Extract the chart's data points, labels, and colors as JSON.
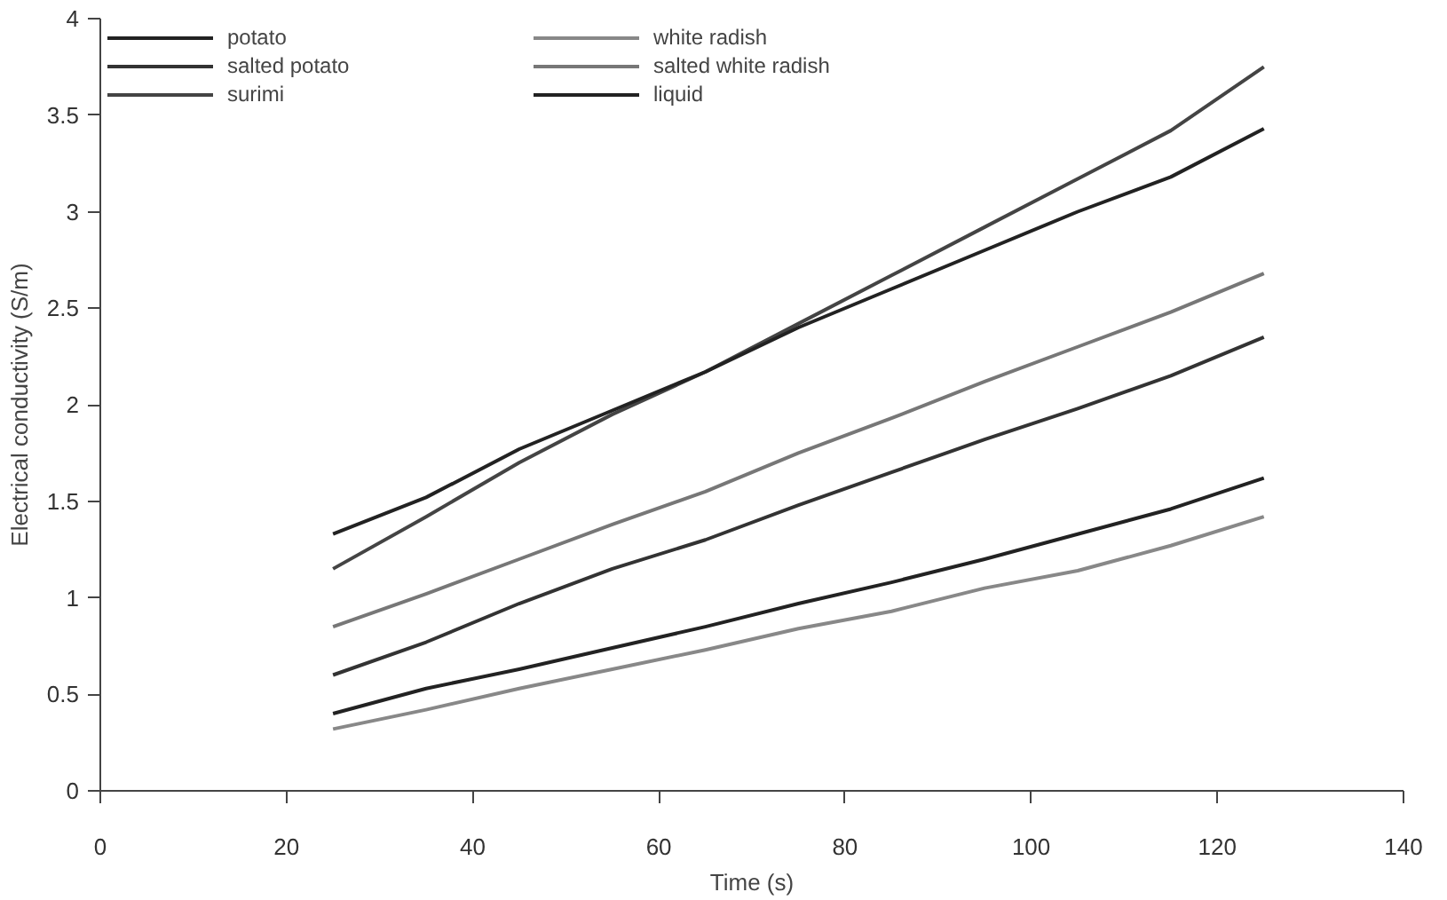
{
  "chart_data": {
    "type": "line",
    "xlabel": "Time (s)",
    "ylabel": "Electrical conductivity (S/m)",
    "x": [
      25,
      35,
      45,
      55,
      65,
      75,
      85,
      95,
      105,
      115,
      125
    ],
    "series": [
      {
        "name": "potato",
        "color": "#222222",
        "values": [
          0.4,
          0.53,
          0.63,
          0.74,
          0.85,
          0.97,
          1.08,
          1.2,
          1.33,
          1.46,
          1.62
        ]
      },
      {
        "name": "salted potato",
        "color": "#333333",
        "values": [
          0.6,
          0.77,
          0.97,
          1.15,
          1.3,
          1.48,
          1.65,
          1.82,
          1.98,
          2.15,
          2.35
        ]
      },
      {
        "name": "surimi",
        "color": "#444444",
        "values": [
          1.15,
          1.42,
          1.7,
          1.95,
          2.17,
          2.42,
          2.67,
          2.92,
          3.17,
          3.42,
          3.75
        ]
      },
      {
        "name": "white radish",
        "color": "#888888",
        "values": [
          0.32,
          0.42,
          0.53,
          0.63,
          0.73,
          0.84,
          0.93,
          1.05,
          1.14,
          1.27,
          1.42
        ]
      },
      {
        "name": "salted white radish",
        "color": "#777777",
        "values": [
          0.85,
          1.02,
          1.2,
          1.38,
          1.55,
          1.75,
          1.93,
          2.12,
          2.3,
          2.48,
          2.68
        ]
      },
      {
        "name": "liquid",
        "color": "#222222",
        "values": [
          1.33,
          1.52,
          1.77,
          1.97,
          2.17,
          2.4,
          2.6,
          2.8,
          3.0,
          3.18,
          3.43
        ]
      }
    ],
    "xlim": [
      0,
      140
    ],
    "xticks": [
      0,
      20,
      40,
      60,
      80,
      100,
      120,
      140
    ],
    "ylim": [
      0,
      4
    ],
    "yticks": [
      0,
      0.5,
      1,
      1.5,
      2,
      2.5,
      3,
      3.5,
      4
    ],
    "grid": false,
    "legend": "top",
    "marker": "none",
    "line_style": "solid"
  }
}
